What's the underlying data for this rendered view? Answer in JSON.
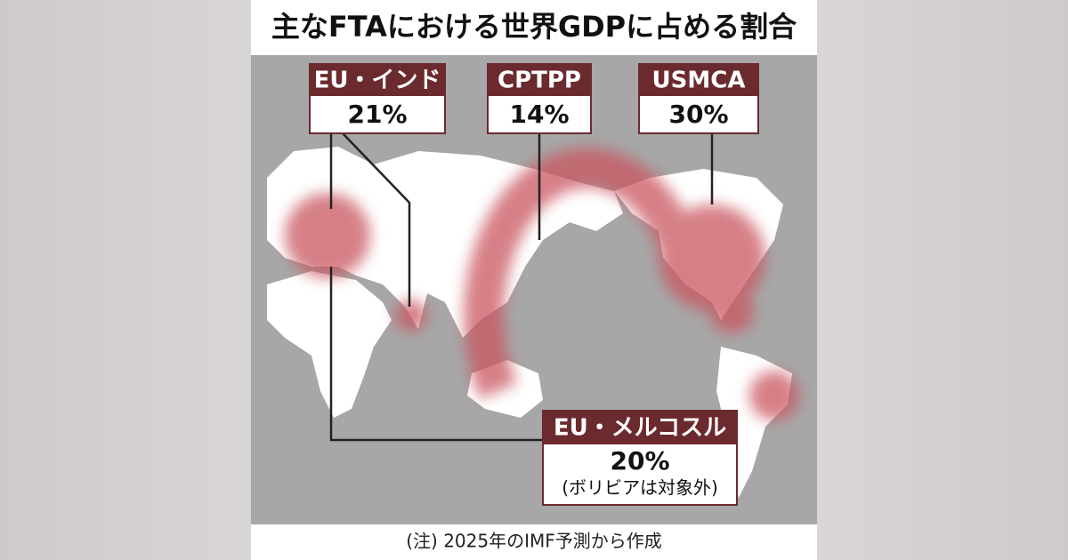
{
  "title": "主なFTAにおける世界GDPに占める割合",
  "labels": [
    {
      "name": "EU・インド",
      "share": "21%"
    },
    {
      "name": "CPTPP",
      "share": "14%"
    },
    {
      "name": "USMCA",
      "share": "30%"
    },
    {
      "name": "EU・メルコスル",
      "share": "20%",
      "note": "(ボリビアは対象外)"
    }
  ],
  "footnote": "(注) 2025年のIMF予測から作成"
}
